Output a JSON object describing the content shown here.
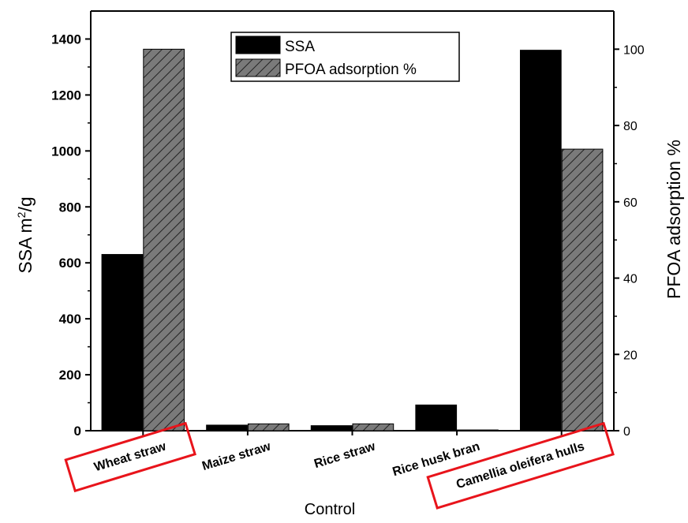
{
  "chart_data": {
    "type": "bar",
    "categories": [
      "Wheat straw",
      "Maize straw",
      "Rice straw",
      "Rice husk bran",
      "Camellia oleifera hulls"
    ],
    "highlighted_categories": [
      "Wheat straw",
      "Camellia oleifera hulls"
    ],
    "highlight_color": "#e8141b",
    "series": [
      {
        "name": "SSA",
        "axis": "left",
        "fill": "#000000",
        "pattern": "solid",
        "values": [
          630,
          20,
          18,
          92,
          1360
        ]
      },
      {
        "name": "PFOA adsorption %",
        "axis": "right",
        "fill": "#7a7a7a",
        "pattern": "diagonal-hatch",
        "values": [
          100,
          1.8,
          1.8,
          0.2,
          73.8
        ]
      }
    ],
    "xlabel": "Control",
    "ylabel": {
      "prefix": "SSA m",
      "superscript": "2",
      "suffix": "/g"
    },
    "y2label": "PFOA adsorption %",
    "ylim": [
      0,
      1500
    ],
    "y2lim": [
      0,
      110
    ],
    "yticks": [
      0,
      200,
      400,
      600,
      800,
      1000,
      1200,
      1400
    ],
    "y2ticks": [
      0,
      20,
      40,
      60,
      80,
      100
    ],
    "legend": {
      "position": "top-center",
      "entries": [
        "SSA",
        "PFOA adsorption %"
      ]
    },
    "grid": false
  }
}
